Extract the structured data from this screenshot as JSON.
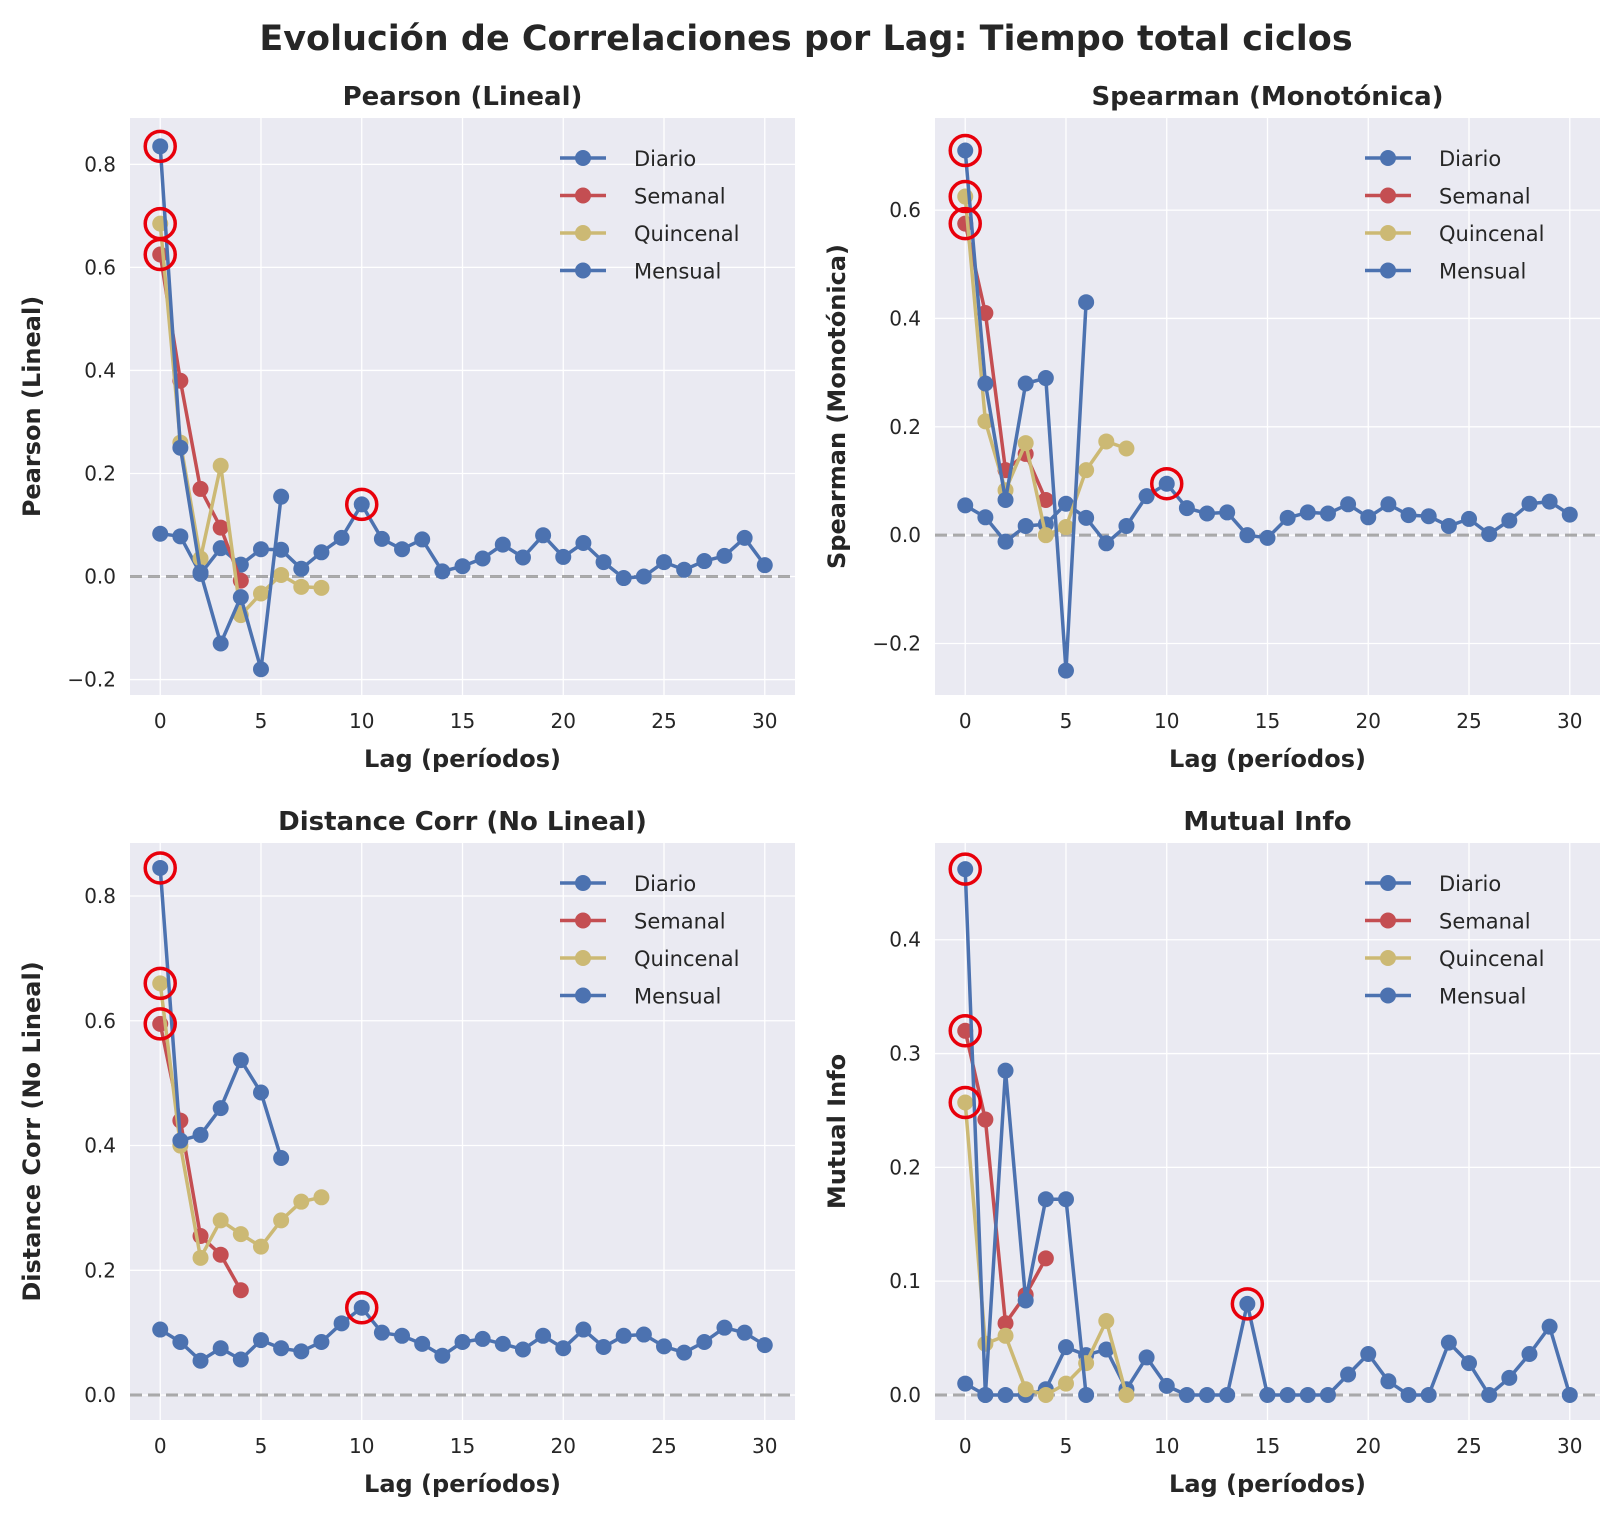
{
  "figure_title": "Evolución de Correlaciones por Lag: Tiempo total ciclos",
  "colors": {
    "Diario": "#4c72b0",
    "Semanal": "#c44e52",
    "Quincenal": "#ccb974",
    "Mensual": "#4c72b0",
    "highlight": "#e8000b",
    "zero_line": "#888888",
    "axes_bg": "#eaeaf2"
  },
  "chart_data": [
    {
      "type": "line",
      "title": "Pearson (Lineal)",
      "xlabel": "Lag (períodos)",
      "ylabel": "Pearson (Lineal)",
      "xlim": [
        -1.5,
        31.5
      ],
      "ylim": [
        -0.23,
        0.89
      ],
      "xticks": [
        0,
        5,
        10,
        15,
        20,
        25,
        30
      ],
      "yticks": [
        -0.2,
        0.0,
        0.2,
        0.4,
        0.6,
        0.8
      ],
      "legend": "top-right",
      "grid": true,
      "series": [
        {
          "name": "Diario",
          "x": [
            0,
            1,
            2,
            3,
            4,
            5,
            6,
            7,
            8,
            9,
            10,
            11,
            12,
            13,
            14,
            15,
            16,
            17,
            18,
            19,
            20,
            21,
            22,
            23,
            24,
            25,
            26,
            27,
            28,
            29,
            30
          ],
          "values": [
            0.083,
            0.078,
            0.005,
            0.055,
            0.023,
            0.053,
            0.052,
            0.015,
            0.047,
            0.075,
            0.14,
            0.073,
            0.053,
            0.072,
            0.01,
            0.02,
            0.035,
            0.062,
            0.037,
            0.08,
            0.038,
            0.065,
            0.028,
            -0.003,
            0.0,
            0.028,
            0.013,
            0.03,
            0.04,
            0.075,
            0.022
          ]
        },
        {
          "name": "Semanal",
          "x": [
            0,
            1,
            2,
            3,
            4
          ],
          "values": [
            0.625,
            0.38,
            0.17,
            0.095,
            -0.008
          ]
        },
        {
          "name": "Quincenal",
          "x": [
            0,
            1,
            2,
            3,
            4,
            5,
            6,
            7,
            8
          ],
          "values": [
            0.685,
            0.26,
            0.035,
            0.215,
            -0.075,
            -0.033,
            0.003,
            -0.02,
            -0.022
          ]
        },
        {
          "name": "Mensual",
          "x": [
            0,
            1,
            2,
            3,
            4,
            5,
            6
          ],
          "values": [
            0.835,
            0.25,
            0.008,
            -0.13,
            -0.04,
            -0.18,
            0.155
          ]
        }
      ],
      "highlights": [
        {
          "x": 0,
          "y": 0.835
        },
        {
          "x": 0,
          "y": 0.685
        },
        {
          "x": 0,
          "y": 0.625
        },
        {
          "x": 10,
          "y": 0.14
        }
      ]
    },
    {
      "type": "line",
      "title": "Spearman (Monotónica)",
      "xlabel": "Lag (períodos)",
      "ylabel": "Spearman (Monotónica)",
      "xlim": [
        -1.5,
        31.5
      ],
      "ylim": [
        -0.295,
        0.77
      ],
      "xticks": [
        0,
        5,
        10,
        15,
        20,
        25,
        30
      ],
      "yticks": [
        -0.2,
        0.0,
        0.2,
        0.4,
        0.6
      ],
      "legend": "top-right",
      "grid": true,
      "series": [
        {
          "name": "Diario",
          "x": [
            0,
            1,
            2,
            3,
            4,
            5,
            6,
            7,
            8,
            9,
            10,
            11,
            12,
            13,
            14,
            15,
            16,
            17,
            18,
            19,
            20,
            21,
            22,
            23,
            24,
            25,
            26,
            27,
            28,
            29,
            30
          ],
          "values": [
            0.055,
            0.033,
            -0.012,
            0.017,
            0.02,
            0.058,
            0.032,
            -0.015,
            0.017,
            0.072,
            0.095,
            0.05,
            0.04,
            0.042,
            0.0,
            -0.005,
            0.032,
            0.042,
            0.04,
            0.057,
            0.033,
            0.057,
            0.037,
            0.035,
            0.017,
            0.03,
            0.002,
            0.027,
            0.058,
            0.062,
            0.038
          ]
        },
        {
          "name": "Semanal",
          "x": [
            0,
            1,
            2,
            3,
            4
          ],
          "values": [
            0.575,
            0.41,
            0.12,
            0.15,
            0.065
          ]
        },
        {
          "name": "Quincenal",
          "x": [
            0,
            1,
            2,
            3,
            4,
            5,
            6,
            7,
            8
          ],
          "values": [
            0.625,
            0.21,
            0.083,
            0.17,
            0.0,
            0.015,
            0.12,
            0.173,
            0.16
          ]
        },
        {
          "name": "Mensual",
          "x": [
            0,
            1,
            2,
            3,
            4,
            5,
            6
          ],
          "values": [
            0.71,
            0.28,
            0.065,
            0.28,
            0.29,
            -0.25,
            0.43
          ]
        }
      ],
      "highlights": [
        {
          "x": 0,
          "y": 0.71
        },
        {
          "x": 0,
          "y": 0.625
        },
        {
          "x": 0,
          "y": 0.575
        },
        {
          "x": 10,
          "y": 0.095
        }
      ]
    },
    {
      "type": "line",
      "title": "Distance Corr (No Lineal)",
      "xlabel": "Lag (períodos)",
      "ylabel": "Distance Corr (No Lineal)",
      "xlim": [
        -1.5,
        31.5
      ],
      "ylim": [
        -0.04,
        0.885
      ],
      "xticks": [
        0,
        5,
        10,
        15,
        20,
        25,
        30
      ],
      "yticks": [
        0.0,
        0.2,
        0.4,
        0.6,
        0.8
      ],
      "legend": "top-right",
      "grid": true,
      "series": [
        {
          "name": "Diario",
          "x": [
            0,
            1,
            2,
            3,
            4,
            5,
            6,
            7,
            8,
            9,
            10,
            11,
            12,
            13,
            14,
            15,
            16,
            17,
            18,
            19,
            20,
            21,
            22,
            23,
            24,
            25,
            26,
            27,
            28,
            29,
            30
          ],
          "values": [
            0.105,
            0.085,
            0.055,
            0.075,
            0.057,
            0.088,
            0.075,
            0.07,
            0.085,
            0.115,
            0.14,
            0.1,
            0.095,
            0.082,
            0.063,
            0.085,
            0.09,
            0.082,
            0.073,
            0.095,
            0.075,
            0.105,
            0.077,
            0.095,
            0.097,
            0.078,
            0.068,
            0.085,
            0.108,
            0.1,
            0.08
          ]
        },
        {
          "name": "Semanal",
          "x": [
            0,
            1,
            2,
            3,
            4
          ],
          "values": [
            0.595,
            0.44,
            0.255,
            0.225,
            0.168
          ]
        },
        {
          "name": "Quincenal",
          "x": [
            0,
            1,
            2,
            3,
            4,
            5,
            6,
            7,
            8
          ],
          "values": [
            0.66,
            0.4,
            0.22,
            0.28,
            0.258,
            0.238,
            0.28,
            0.31,
            0.317
          ]
        },
        {
          "name": "Mensual",
          "x": [
            0,
            1,
            2,
            3,
            4,
            5,
            6
          ],
          "values": [
            0.845,
            0.408,
            0.417,
            0.46,
            0.537,
            0.485,
            0.38
          ]
        }
      ],
      "highlights": [
        {
          "x": 0,
          "y": 0.845
        },
        {
          "x": 0,
          "y": 0.66
        },
        {
          "x": 0,
          "y": 0.595
        },
        {
          "x": 10,
          "y": 0.14
        }
      ]
    },
    {
      "type": "line",
      "title": "Mutual Info",
      "xlabel": "Lag (períodos)",
      "ylabel": "Mutual Info",
      "xlim": [
        -1.5,
        31.5
      ],
      "ylim": [
        -0.022,
        0.485
      ],
      "xticks": [
        0,
        5,
        10,
        15,
        20,
        25,
        30
      ],
      "yticks": [
        0.0,
        0.1,
        0.2,
        0.3,
        0.4
      ],
      "legend": "top-right",
      "grid": true,
      "series": [
        {
          "name": "Diario",
          "x": [
            0,
            1,
            2,
            3,
            4,
            5,
            6,
            7,
            8,
            9,
            10,
            11,
            12,
            13,
            14,
            15,
            16,
            17,
            18,
            19,
            20,
            21,
            22,
            23,
            24,
            25,
            26,
            27,
            28,
            29,
            30
          ],
          "values": [
            0.01,
            0.0,
            0.0,
            0.0,
            0.005,
            0.042,
            0.035,
            0.04,
            0.005,
            0.033,
            0.008,
            0.0,
            0.0,
            0.0,
            0.08,
            0.0,
            0.0,
            0.0,
            0.0,
            0.018,
            0.036,
            0.012,
            0.0,
            0.0,
            0.046,
            0.028,
            0.0,
            0.015,
            0.036,
            0.06,
            0.0
          ]
        },
        {
          "name": "Semanal",
          "x": [
            0,
            1,
            2,
            3,
            4
          ],
          "values": [
            0.32,
            0.242,
            0.063,
            0.088,
            0.12
          ]
        },
        {
          "name": "Quincenal",
          "x": [
            0,
            1,
            2,
            3,
            4,
            5,
            6,
            7,
            8
          ],
          "values": [
            0.257,
            0.045,
            0.052,
            0.005,
            0.0,
            0.01,
            0.028,
            0.065,
            0.0
          ]
        },
        {
          "name": "Mensual",
          "x": [
            0,
            1,
            2,
            3,
            4,
            5,
            6
          ],
          "values": [
            0.462,
            0.0,
            0.285,
            0.083,
            0.172,
            0.172,
            0.0
          ]
        }
      ],
      "highlights": [
        {
          "x": 0,
          "y": 0.462
        },
        {
          "x": 0,
          "y": 0.32
        },
        {
          "x": 0,
          "y": 0.257
        },
        {
          "x": 14,
          "y": 0.08
        }
      ]
    }
  ]
}
